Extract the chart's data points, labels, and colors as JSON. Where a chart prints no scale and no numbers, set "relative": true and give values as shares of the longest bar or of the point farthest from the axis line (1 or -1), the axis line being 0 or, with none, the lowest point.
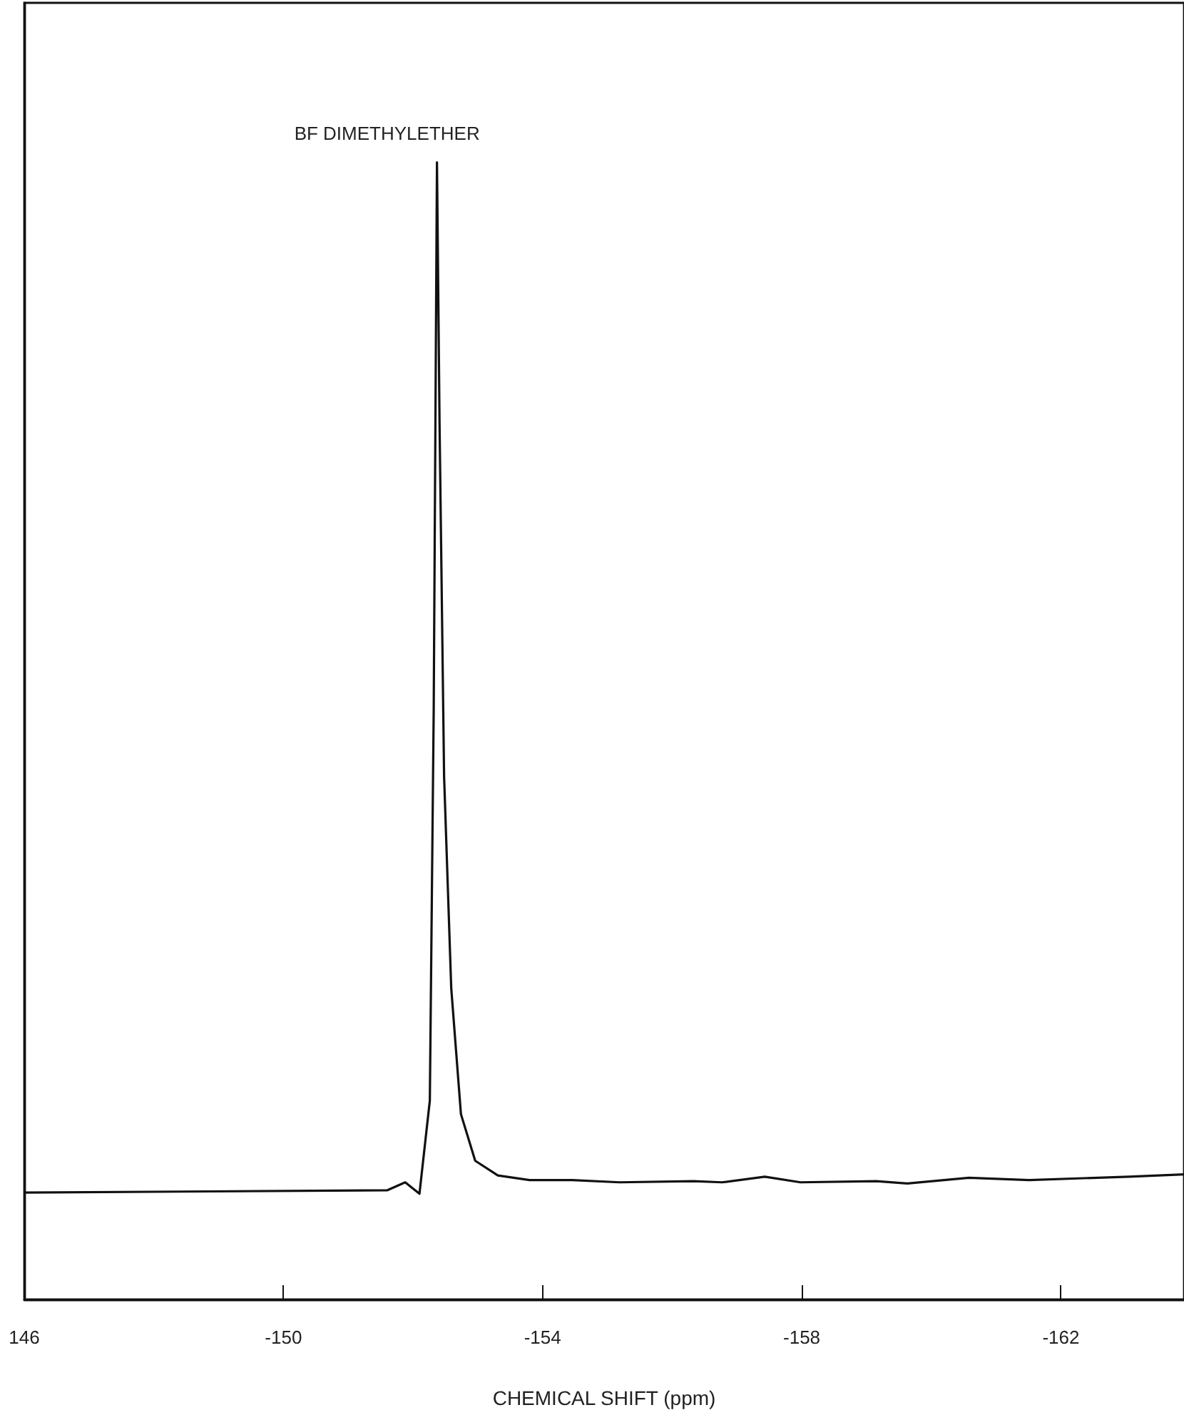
{
  "chart_data": {
    "type": "line",
    "relative": true,
    "xlabel": "CHEMICAL SHIFT (ppm)",
    "x": [
      -146.0,
      -151.6,
      -151.88,
      -152.1,
      -152.26,
      -152.32,
      -152.37,
      -152.41,
      -152.48,
      -152.59,
      -152.74,
      -152.96,
      -153.31,
      -153.8,
      -154.46,
      -155.19,
      -156.33,
      -156.77,
      -157.43,
      -157.98,
      -159.15,
      -159.63,
      -160.58,
      -161.51,
      -163.05,
      -163.9
    ],
    "series": [
      {
        "color": "#111111",
        "values": [
          0.094,
          0.096,
          0.103,
          0.093,
          0.175,
          0.52,
          1.0,
          0.77,
          0.46,
          0.274,
          0.163,
          0.122,
          0.109,
          0.105,
          0.105,
          0.103,
          0.104,
          0.103,
          0.108,
          0.103,
          0.104,
          0.102,
          0.107,
          0.105,
          0.108,
          0.11
        ]
      }
    ],
    "xlim": [
      -146,
      -163.9
    ],
    "xticks": [
      {
        "value": -146,
        "label": "146"
      },
      -150,
      -154,
      -158,
      -162
    ],
    "annotations": [
      {
        "text": "BF DIMETHYLETHER",
        "x": -152.37,
        "y": 1.0
      }
    ],
    "tick_labels": "x",
    "grid": false,
    "marker": "none",
    "line_style": "solid"
  }
}
